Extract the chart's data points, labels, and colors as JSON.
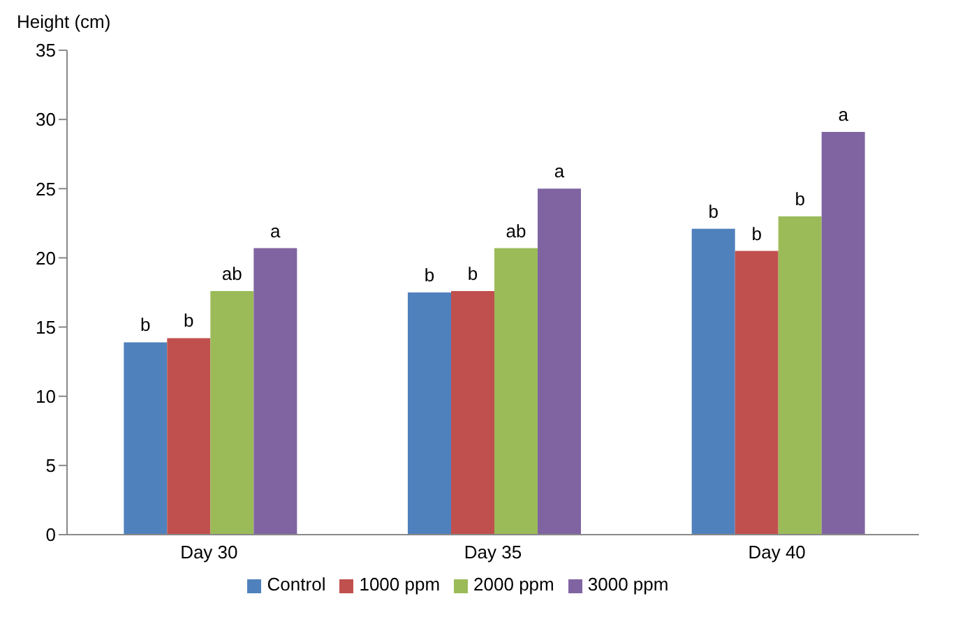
{
  "chart_data": {
    "type": "bar",
    "ylabel": "Height (cm)",
    "categories": [
      "Day 30",
      "Day 35",
      "Day 40"
    ],
    "series": [
      {
        "name": "Control",
        "color": "#4f81bd",
        "values": [
          13.9,
          17.5,
          22.1
        ],
        "value_labels": [
          "b",
          "b",
          "b"
        ]
      },
      {
        "name": "1000 ppm",
        "color": "#c0504d",
        "values": [
          14.2,
          17.6,
          20.5
        ],
        "value_labels": [
          "b",
          "b",
          "b"
        ]
      },
      {
        "name": "2000 ppm",
        "color": "#9bbb59",
        "values": [
          17.6,
          20.7,
          23.0
        ],
        "value_labels": [
          "ab",
          "ab",
          "b"
        ]
      },
      {
        "name": "3000 ppm",
        "color": "#8064a2",
        "values": [
          20.7,
          25.0,
          29.1
        ],
        "value_labels": [
          "a",
          "a",
          "a"
        ]
      }
    ],
    "ylim": [
      0,
      35
    ],
    "yticks": [
      0,
      5,
      10,
      15,
      20,
      25,
      30,
      35
    ],
    "grid": false,
    "legend": "bottom"
  }
}
